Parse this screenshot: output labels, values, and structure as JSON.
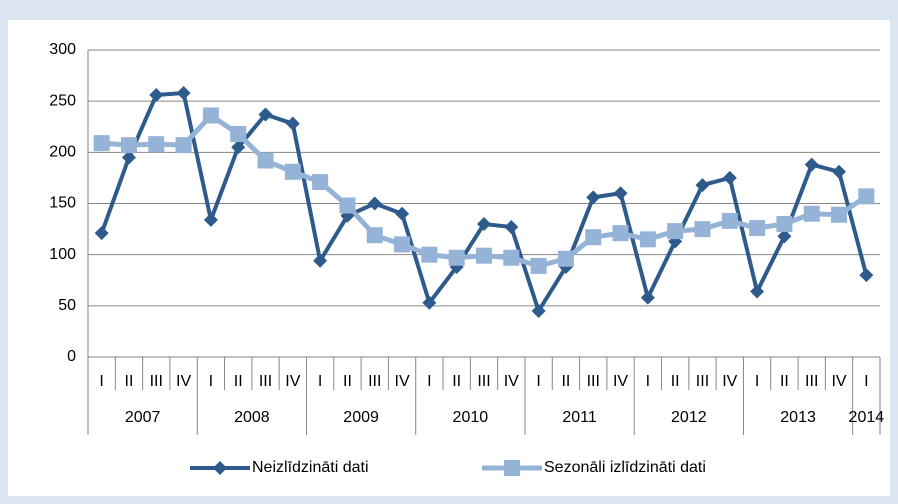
{
  "chart_data": {
    "type": "line",
    "categories": [
      "I",
      "II",
      "III",
      "IV",
      "I",
      "II",
      "III",
      "IV",
      "I",
      "II",
      "III",
      "IV",
      "I",
      "II",
      "III",
      "IV",
      "I",
      "II",
      "III",
      "IV",
      "I",
      "II",
      "III",
      "IV",
      "I",
      "II",
      "III",
      "IV",
      "I"
    ],
    "x_groups": [
      {
        "label": "2007",
        "count": 4
      },
      {
        "label": "2008",
        "count": 4
      },
      {
        "label": "2009",
        "count": 4
      },
      {
        "label": "2010",
        "count": 4
      },
      {
        "label": "2011",
        "count": 4
      },
      {
        "label": "2012",
        "count": 4
      },
      {
        "label": "2013",
        "count": 4
      },
      {
        "label": "2014",
        "count": 1
      }
    ],
    "series": [
      {
        "name": "Neizlīdzināti dati",
        "color": "#2e5a8c",
        "marker": "diamond",
        "values": [
          121,
          195,
          256,
          258,
          134,
          205,
          237,
          228,
          94,
          138,
          150,
          140,
          53,
          88,
          130,
          127,
          45,
          88,
          156,
          160,
          58,
          113,
          168,
          175,
          64,
          118,
          188,
          181,
          80
        ]
      },
      {
        "name": "Sezonāli izlīdzināti dati",
        "color": "#95b3d7",
        "marker": "square",
        "values": [
          209,
          207,
          208,
          207,
          236,
          218,
          192,
          181,
          171,
          148,
          119,
          110,
          100,
          97,
          99,
          97,
          89,
          96,
          117,
          121,
          115,
          123,
          125,
          133,
          126,
          130,
          140,
          139,
          157
        ]
      }
    ],
    "ylim": [
      0,
      300
    ],
    "yticks": [
      0,
      50,
      100,
      150,
      200,
      250,
      300
    ],
    "grid": true,
    "legend": "bottom"
  }
}
